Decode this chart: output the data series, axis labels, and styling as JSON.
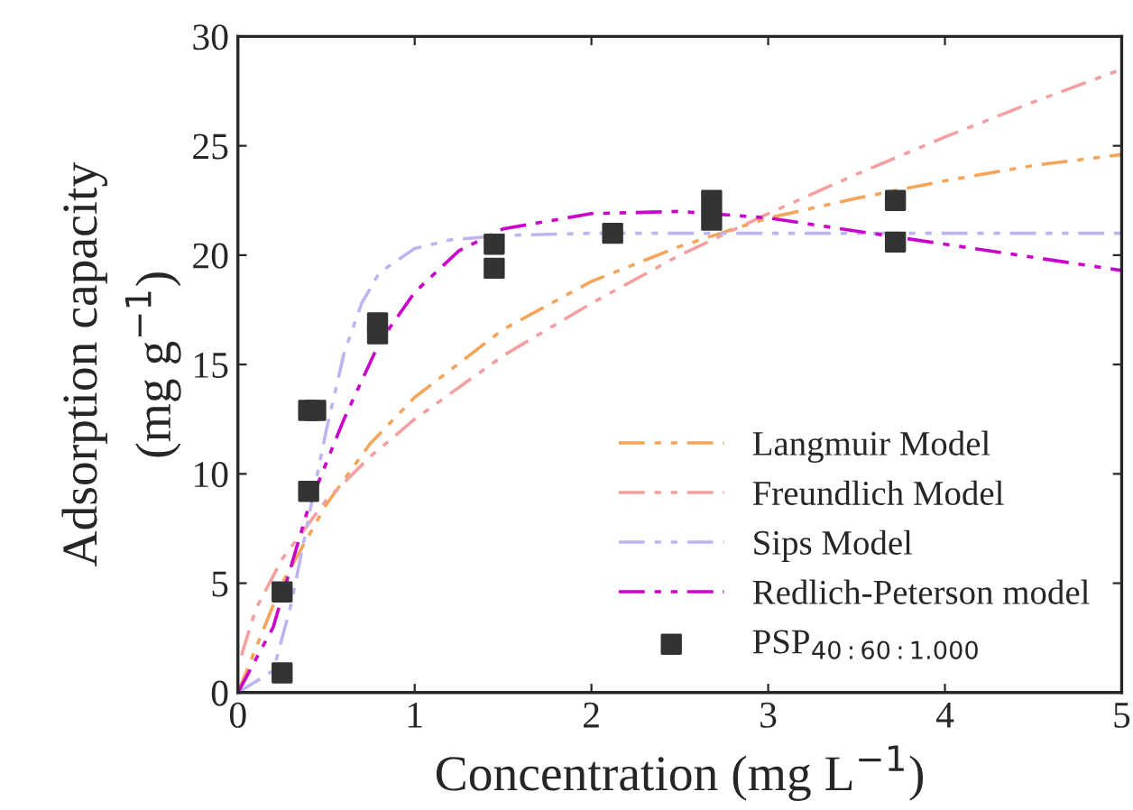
{
  "chart_data": {
    "type": "line",
    "xlabel": "Concentration (mg L$^{−1}$)",
    "ylabel": "Adsorption capacity\n(mg g$^{−1}$)",
    "xlim": [
      0,
      5
    ],
    "ylim": [
      0,
      30
    ],
    "xticks": [
      0,
      1,
      2,
      3,
      4,
      5
    ],
    "yticks": [
      0,
      5,
      10,
      15,
      20,
      25,
      30
    ],
    "grid": false,
    "legend": "bottom right",
    "line_style": "dashed",
    "series": [
      {
        "name": "Langmuir Model",
        "color": "#f5a55a",
        "x": [
          0,
          0.25,
          0.5,
          0.75,
          1,
          1.5,
          2,
          2.5,
          3,
          3.5,
          4,
          4.5,
          5
        ],
        "values": [
          0,
          5.0,
          8.6,
          11.4,
          13.5,
          16.6,
          18.8,
          20.4,
          21.7,
          22.6,
          23.4,
          24.1,
          24.6
        ]
      },
      {
        "name": "Freundlich Model",
        "color": "#f4a0a0",
        "x": [
          0.02,
          0.1,
          0.25,
          0.5,
          0.75,
          1,
          1.5,
          2,
          2.5,
          3,
          3.5,
          4,
          4.5,
          5
        ],
        "values": [
          1.7,
          3.8,
          6.1,
          8.8,
          10.8,
          12.5,
          15.4,
          17.8,
          20.0,
          21.9,
          23.7,
          25.4,
          27.0,
          28.5
        ]
      },
      {
        "name": "Sips Model",
        "color": "#c0b4f0",
        "x": [
          0,
          0.2,
          0.3,
          0.4,
          0.5,
          0.6,
          0.7,
          0.8,
          1,
          1.2,
          1.5,
          2,
          3,
          4,
          5
        ],
        "values": [
          0,
          1,
          4,
          8,
          12,
          15.5,
          17.8,
          19.2,
          20.3,
          20.7,
          20.9,
          21,
          21,
          21,
          21
        ]
      },
      {
        "name": "Redlich-Peterson model",
        "color": "#cc00cc",
        "x": [
          0,
          0.2,
          0.4,
          0.6,
          0.8,
          1,
          1.25,
          1.5,
          2,
          2.5,
          3,
          3.5,
          4,
          4.5,
          5
        ],
        "values": [
          0,
          3,
          8.5,
          12.5,
          16,
          18.3,
          20.2,
          21.2,
          21.9,
          22.0,
          21.7,
          21.1,
          20.5,
          19.9,
          19.3
        ]
      },
      {
        "name": "PSP$_{40:60:1.000}$",
        "type": "scatter",
        "marker": "square",
        "color": "#333333",
        "x": [
          0.25,
          0.25,
          0.4,
          0.4,
          0.44,
          0.79,
          0.79,
          1.45,
          1.45,
          2.12,
          2.68,
          2.68,
          3.72,
          3.72
        ],
        "values": [
          0.9,
          4.6,
          9.2,
          12.9,
          12.9,
          16.9,
          16.4,
          20.5,
          19.4,
          21.0,
          22.5,
          21.6,
          22.5,
          20.6
        ]
      }
    ]
  }
}
